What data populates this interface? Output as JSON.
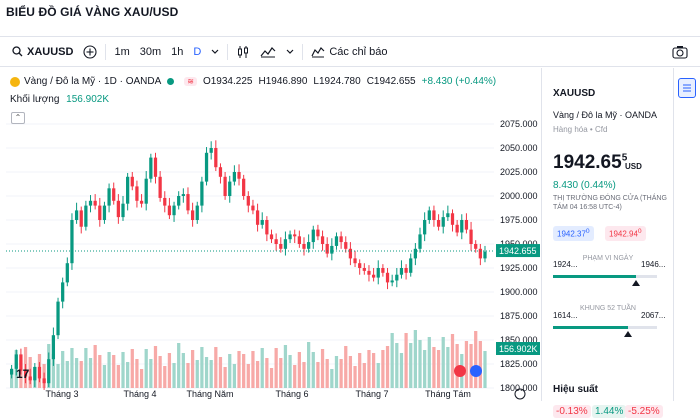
{
  "page": {
    "title": "BIỂU ĐỒ GIÁ VÀNG XAU/USD"
  },
  "toolbar": {
    "symbol": "XAUUSD",
    "add_label": "+",
    "intervals": [
      "1m",
      "30m",
      "1h",
      "D"
    ],
    "active_interval": "D",
    "indicators_label": "Các chỉ báo"
  },
  "legend": {
    "title": "Vàng / Đô la Mỹ · 1D · OANDA",
    "open": "O1934.225",
    "high": "H1946.890",
    "low": "L1924.780",
    "close": "C1942.655",
    "change": "+8.430 (+0.44%)",
    "volume_label": "Khối lượng",
    "volume_value": "156.902K"
  },
  "chart_data": {
    "type": "candlestick",
    "x_labels": [
      "Tháng 3",
      "Tháng 4",
      "Tháng Năm",
      "Tháng 6",
      "Tháng 7",
      "Tháng Tám"
    ],
    "y_ticks": [
      "2075.000",
      "2050.000",
      "2025.000",
      "2000.000",
      "1975.000",
      "1950.000",
      "1925.000",
      "1900.000",
      "1875.000",
      "1850.000",
      "1825.000",
      "1800.000"
    ],
    "ylim": [
      1800,
      2075
    ],
    "last_price_label": "1942.655",
    "volume_label_axis": "156.902K",
    "close_series": [
      1820,
      1835,
      1818,
      1812,
      1808,
      1822,
      1810,
      1805,
      1830,
      1855,
      1890,
      1910,
      1930,
      1975,
      1985,
      1968,
      1990,
      1995,
      1990,
      1975,
      1990,
      2008,
      1995,
      1978,
      1992,
      2020,
      2010,
      1995,
      1992,
      2018,
      2040,
      2020,
      1998,
      1990,
      1980,
      1990,
      2000,
      2002,
      1985,
      1975,
      1990,
      2015,
      2045,
      2050,
      2030,
      2020,
      2000,
      2015,
      2025,
      2018,
      2000,
      1990,
      1985,
      1970,
      1975,
      1960,
      1955,
      1950,
      1945,
      1955,
      1960,
      1958,
      1950,
      1945,
      1952,
      1965,
      1958,
      1950,
      1940,
      1948,
      1958,
      1952,
      1945,
      1935,
      1930,
      1925,
      1922,
      1918,
      1915,
      1925,
      1920,
      1910,
      1912,
      1918,
      1925,
      1920,
      1935,
      1945,
      1960,
      1975,
      1985,
      1975,
      1968,
      1978,
      1982,
      1970,
      1962,
      1975,
      1965,
      1950,
      1945,
      1935,
      1942
    ]
  },
  "sidebar": {
    "symbol": "XAUUSD",
    "description": "Vàng / Đô la Mỹ · OANDA",
    "type": "Hàng hóa • Cfd",
    "price_main": "1942.65",
    "price_sup": "5",
    "currency": "USD",
    "change": "8.430 (0.44%)",
    "status": "THỊ TRƯỜNG ĐÓNG CỬA (THÁNG TÁM 04 16:58 UTC-4)",
    "bid": "1942.37",
    "bid_sup": "0",
    "ask": "1942.94",
    "ask_sup": "0",
    "day_low": "1924...",
    "day_high": "1946...",
    "day_range_label": "PHẠM VI NGÀY",
    "day_range_fraction": 0.8,
    "week52_low": "1614...",
    "week52_high": "2067...",
    "week52_range_label": "KHUNG 52 TUẦN",
    "week52_fraction": 0.72,
    "performance_title": "Hiệu suất",
    "performance": [
      "-0.13%",
      "1.44%",
      "-5.25%"
    ]
  }
}
